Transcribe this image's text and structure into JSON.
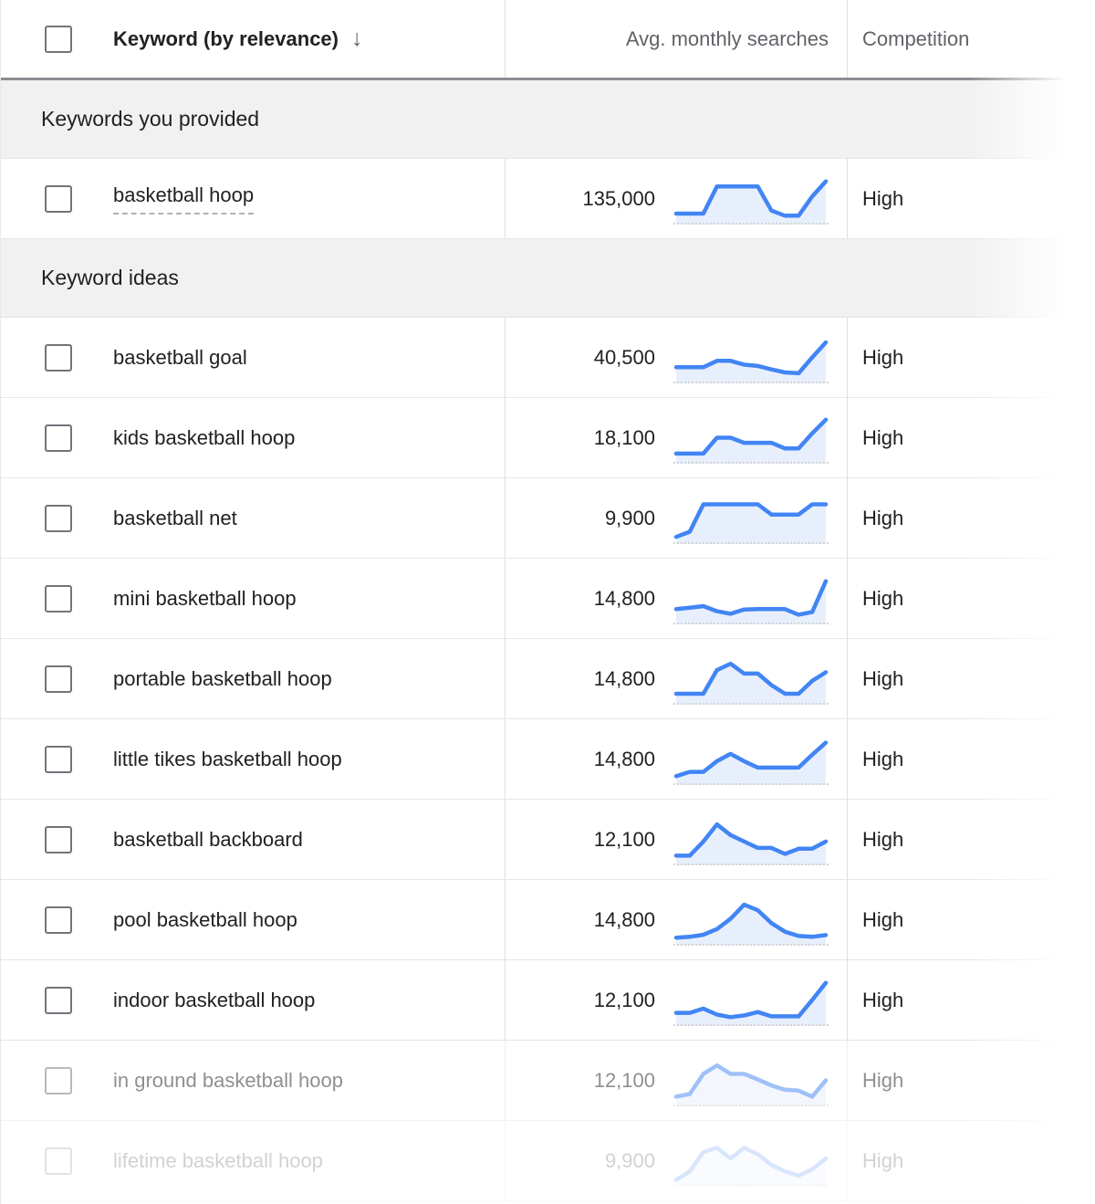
{
  "colors": {
    "accent": "#4285f4",
    "spark_fill": "#e8effc",
    "header_text": "#5f6368",
    "body_text": "#212121",
    "section_bg": "#f1f1f1"
  },
  "header": {
    "keyword_column": "Keyword (by relevance)",
    "sort_icon": "arrow-down",
    "sort_glyph": "↓",
    "searches_column": "Avg. monthly searches",
    "competition_column": "Competition"
  },
  "rows": [
    {
      "type": "section",
      "label": "Keywords you provided"
    },
    {
      "type": "keyword",
      "keyword": "basketball hoop",
      "searches": "135,000",
      "competition": "High",
      "underlined": true,
      "opacity": 1,
      "trend": [
        15,
        15,
        15,
        78,
        78,
        78,
        78,
        22,
        10,
        10,
        55,
        90
      ]
    },
    {
      "type": "section",
      "label": "Keyword ideas"
    },
    {
      "type": "keyword",
      "keyword": "basketball goal",
      "searches": "40,500",
      "competition": "High",
      "underlined": false,
      "opacity": 1,
      "trend": [
        27,
        27,
        27,
        42,
        42,
        33,
        30,
        22,
        15,
        13,
        50,
        85
      ]
    },
    {
      "type": "keyword",
      "keyword": "kids basketball hoop",
      "searches": "18,100",
      "competition": "High",
      "underlined": false,
      "opacity": 1,
      "trend": [
        13,
        13,
        13,
        50,
        50,
        38,
        38,
        38,
        25,
        25,
        60,
        92
      ]
    },
    {
      "type": "keyword",
      "keyword": "basketball net",
      "searches": "9,900",
      "competition": "High",
      "underlined": false,
      "opacity": 1,
      "trend": [
        6,
        18,
        82,
        82,
        82,
        82,
        82,
        58,
        58,
        58,
        82,
        82
      ]
    },
    {
      "type": "keyword",
      "keyword": "mini basketball hoop",
      "searches": "14,800",
      "competition": "High",
      "underlined": false,
      "opacity": 1,
      "trend": [
        25,
        28,
        32,
        20,
        14,
        24,
        25,
        25,
        25,
        12,
        18,
        90
      ]
    },
    {
      "type": "keyword",
      "keyword": "portable basketball hoop",
      "searches": "14,800",
      "competition": "High",
      "underlined": false,
      "opacity": 1,
      "trend": [
        15,
        15,
        15,
        70,
        85,
        62,
        62,
        35,
        15,
        15,
        45,
        65
      ]
    },
    {
      "type": "keyword",
      "keyword": "little tikes basketball hoop",
      "searches": "14,800",
      "competition": "High",
      "underlined": false,
      "opacity": 1,
      "trend": [
        10,
        20,
        20,
        45,
        62,
        45,
        30,
        30,
        30,
        30,
        60,
        88
      ]
    },
    {
      "type": "keyword",
      "keyword": "basketball backboard",
      "searches": "12,100",
      "competition": "High",
      "underlined": false,
      "opacity": 1,
      "trend": [
        12,
        12,
        45,
        85,
        60,
        45,
        30,
        30,
        16,
        28,
        28,
        45
      ]
    },
    {
      "type": "keyword",
      "keyword": "pool basketball hoop",
      "searches": "14,800",
      "competition": "High",
      "underlined": false,
      "opacity": 1,
      "trend": [
        8,
        10,
        15,
        28,
        52,
        85,
        72,
        42,
        22,
        12,
        10,
        14
      ]
    },
    {
      "type": "keyword",
      "keyword": "indoor basketball hoop",
      "searches": "12,100",
      "competition": "High",
      "underlined": false,
      "opacity": 1,
      "trend": [
        20,
        20,
        30,
        16,
        10,
        14,
        22,
        12,
        12,
        12,
        50,
        90
      ]
    },
    {
      "type": "keyword",
      "keyword": "in ground basketball hoop",
      "searches": "12,100",
      "competition": "High",
      "underlined": false,
      "opacity": 0.5,
      "trend": [
        12,
        18,
        65,
        85,
        65,
        65,
        52,
        38,
        28,
        26,
        12,
        50
      ]
    },
    {
      "type": "keyword",
      "keyword": "lifetime basketball hoop",
      "searches": "9,900",
      "competition": "High",
      "underlined": false,
      "opacity": 0.2,
      "trend": [
        5,
        25,
        70,
        80,
        55,
        80,
        65,
        40,
        25,
        15,
        30,
        55
      ]
    }
  ]
}
